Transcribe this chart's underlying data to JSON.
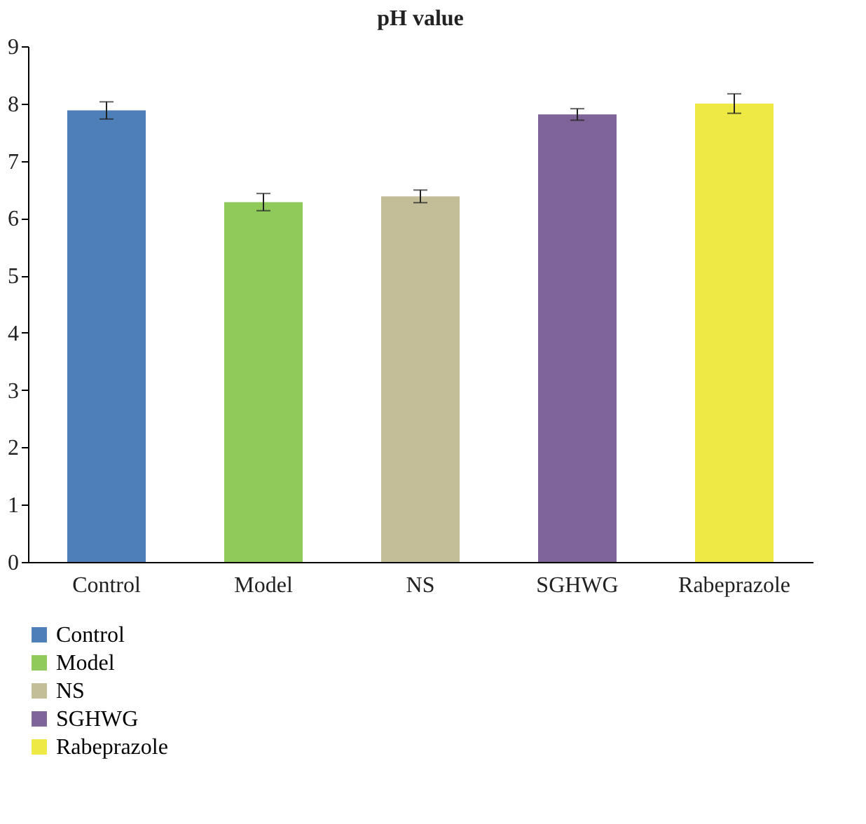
{
  "chart_data": {
    "type": "bar",
    "title": "pH value",
    "categories": [
      "Control",
      "Model",
      "NS",
      "SGHWG",
      "Rabeprazole"
    ],
    "series": [
      {
        "name": "Control",
        "color": "#4f7fb8",
        "values": [
          7.88,
          null,
          null,
          null,
          null
        ],
        "errors": [
          0.15,
          null,
          null,
          null,
          null
        ]
      },
      {
        "name": "Model",
        "color": "#8fca5b",
        "values": [
          null,
          6.28,
          null,
          null,
          null
        ],
        "errors": [
          null,
          0.15,
          null,
          null,
          null
        ]
      },
      {
        "name": "NS",
        "color": "#c3bd98",
        "values": [
          null,
          null,
          6.38,
          null,
          null
        ],
        "errors": [
          null,
          null,
          0.11,
          null,
          null
        ]
      },
      {
        "name": "SGHWG",
        "color": "#7f6499",
        "values": [
          null,
          null,
          null,
          7.81,
          null
        ],
        "errors": [
          null,
          null,
          null,
          0.1,
          null
        ]
      },
      {
        "name": "Rabeprazole",
        "color": "#eee945",
        "values": [
          null,
          null,
          null,
          null,
          8.0
        ],
        "errors": [
          null,
          null,
          null,
          null,
          0.17
        ]
      }
    ],
    "ylim": [
      0,
      9
    ],
    "yticks": [
      0,
      1,
      2,
      3,
      4,
      5,
      6,
      7,
      8,
      9
    ],
    "grid": false,
    "legend": "bottom left"
  }
}
